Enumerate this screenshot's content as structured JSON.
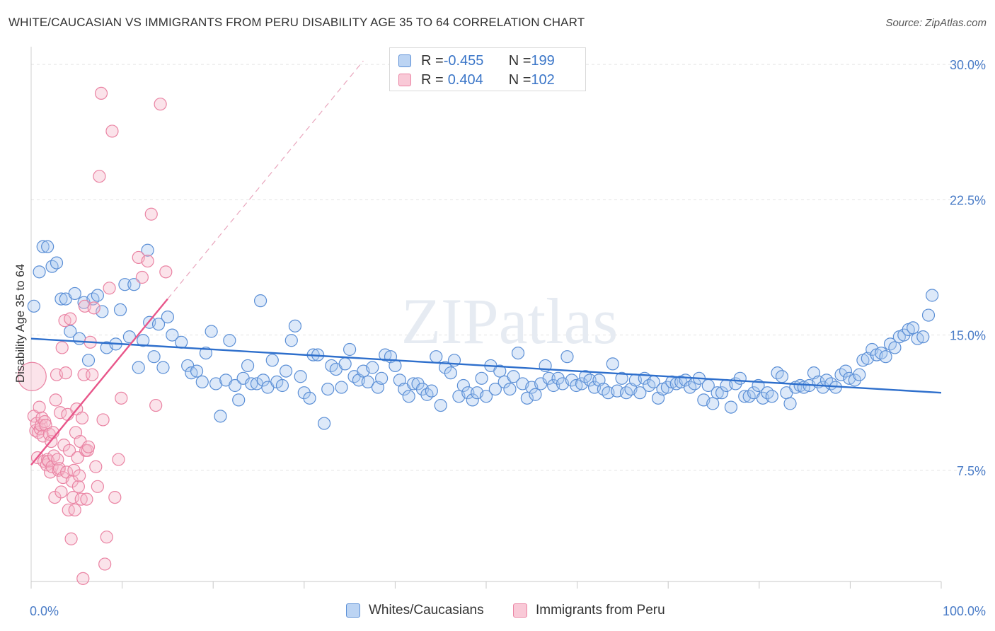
{
  "title": "WHITE/CAUCASIAN VS IMMIGRANTS FROM PERU DISABILITY AGE 35 TO 64 CORRELATION CHART",
  "source": "Source: ZipAtlas.com",
  "watermark": "ZIPatlas",
  "colors": {
    "blue_fill": "#a9c7ef",
    "blue_stroke": "#5b8fd6",
    "blue_line": "#2e6fcc",
    "pink_fill": "#f6b8cb",
    "pink_stroke": "#ea83a3",
    "pink_line": "#e8568a",
    "tick_text": "#4a7cc7",
    "grid": "#e3e3e3"
  },
  "legend_top": {
    "rows": [
      {
        "r_label": "R = ",
        "r_value": "-0.455",
        "n_label": "N = ",
        "n_value": "199",
        "series": "blue"
      },
      {
        "r_label": "R = ",
        "r_value": "0.404",
        "n_label": "N = ",
        "n_value": "102",
        "series": "pink"
      }
    ]
  },
  "legend_bottom": [
    {
      "label": "Whites/Caucasians",
      "series": "blue"
    },
    {
      "label": "Immigrants from Peru",
      "series": "pink"
    }
  ],
  "chart_data": {
    "type": "scatter",
    "ylabel": "Disability Age 35 to 64",
    "xlim": [
      0,
      100
    ],
    "ylim": [
      0,
      31
    ],
    "x_tick_labels": [
      "0.0%",
      "100.0%"
    ],
    "y_ticks": [
      {
        "value": 7.5,
        "label": "7.5%"
      },
      {
        "value": 15.0,
        "label": "15.0%"
      },
      {
        "value": 22.5,
        "label": "22.5%"
      },
      {
        "value": 30.0,
        "label": "30.0%"
      }
    ],
    "grid": true,
    "series": [
      {
        "name": "Whites/Caucasians",
        "color": "blue",
        "trend": {
          "x": [
            0,
            100
          ],
          "y": [
            14.8,
            11.8
          ]
        },
        "points": [
          [
            0.3,
            16.6
          ],
          [
            0.9,
            18.5
          ],
          [
            1.3,
            19.9
          ],
          [
            1.8,
            19.9
          ],
          [
            2.3,
            18.8
          ],
          [
            2.8,
            19.0
          ],
          [
            3.3,
            17.0
          ],
          [
            3.8,
            17.0
          ],
          [
            4.3,
            15.2
          ],
          [
            4.8,
            17.3
          ],
          [
            5.3,
            14.8
          ],
          [
            5.8,
            16.8
          ],
          [
            6.3,
            13.6
          ],
          [
            6.8,
            17.0
          ],
          [
            7.3,
            17.2
          ],
          [
            7.8,
            16.3
          ],
          [
            8.3,
            14.3
          ],
          [
            9.3,
            14.5
          ],
          [
            9.8,
            16.4
          ],
          [
            10.3,
            17.8
          ],
          [
            10.8,
            14.9
          ],
          [
            11.3,
            17.8
          ],
          [
            11.8,
            13.2
          ],
          [
            12.3,
            14.7
          ],
          [
            12.8,
            19.7
          ],
          [
            13.0,
            15.7
          ],
          [
            13.5,
            13.8
          ],
          [
            14.0,
            15.6
          ],
          [
            14.5,
            13.2
          ],
          [
            15.0,
            16.0
          ],
          [
            15.5,
            15.0
          ],
          [
            16.5,
            14.6
          ],
          [
            17.2,
            13.3
          ],
          [
            17.6,
            12.9
          ],
          [
            18.2,
            13.0
          ],
          [
            18.8,
            12.4
          ],
          [
            19.2,
            14.0
          ],
          [
            19.8,
            15.2
          ],
          [
            20.3,
            12.3
          ],
          [
            20.8,
            10.5
          ],
          [
            21.4,
            12.5
          ],
          [
            21.8,
            14.7
          ],
          [
            22.4,
            12.2
          ],
          [
            22.8,
            11.4
          ],
          [
            23.3,
            12.6
          ],
          [
            23.8,
            13.3
          ],
          [
            24.2,
            12.3
          ],
          [
            24.8,
            12.3
          ],
          [
            25.2,
            16.9
          ],
          [
            25.5,
            12.5
          ],
          [
            26.0,
            12.1
          ],
          [
            26.5,
            13.6
          ],
          [
            27.0,
            12.4
          ],
          [
            27.6,
            12.2
          ],
          [
            28.0,
            13.0
          ],
          [
            28.6,
            14.7
          ],
          [
            29.0,
            15.5
          ],
          [
            29.6,
            12.7
          ],
          [
            30.0,
            11.8
          ],
          [
            30.6,
            11.5
          ],
          [
            31.0,
            13.9
          ],
          [
            31.5,
            13.9
          ],
          [
            32.2,
            10.1
          ],
          [
            32.6,
            12.0
          ],
          [
            33.0,
            13.3
          ],
          [
            33.5,
            13.1
          ],
          [
            34.1,
            12.1
          ],
          [
            34.5,
            13.4
          ],
          [
            35.0,
            14.2
          ],
          [
            35.5,
            12.7
          ],
          [
            36.0,
            12.5
          ],
          [
            36.5,
            13.0
          ],
          [
            37.0,
            12.4
          ],
          [
            37.5,
            13.2
          ],
          [
            38.1,
            12.1
          ],
          [
            38.5,
            12.6
          ],
          [
            38.9,
            13.9
          ],
          [
            39.5,
            13.8
          ],
          [
            40.0,
            13.3
          ],
          [
            40.5,
            12.5
          ],
          [
            41.0,
            12.0
          ],
          [
            41.5,
            11.6
          ],
          [
            42.0,
            12.3
          ],
          [
            42.5,
            12.3
          ],
          [
            43.0,
            12.0
          ],
          [
            43.5,
            11.7
          ],
          [
            44.0,
            11.9
          ],
          [
            44.5,
            13.8
          ],
          [
            45.0,
            11.1
          ],
          [
            45.5,
            13.2
          ],
          [
            46.1,
            12.9
          ],
          [
            46.5,
            13.6
          ],
          [
            47.0,
            11.6
          ],
          [
            47.5,
            12.2
          ],
          [
            48.0,
            11.8
          ],
          [
            48.5,
            11.4
          ],
          [
            49.0,
            11.8
          ],
          [
            49.5,
            12.6
          ],
          [
            50.0,
            11.6
          ],
          [
            50.5,
            13.3
          ],
          [
            51.0,
            12.0
          ],
          [
            51.5,
            13.0
          ],
          [
            52.0,
            12.4
          ],
          [
            52.6,
            12.0
          ],
          [
            53.0,
            12.7
          ],
          [
            53.5,
            14.0
          ],
          [
            54.0,
            12.3
          ],
          [
            54.5,
            11.5
          ],
          [
            55.0,
            12.1
          ],
          [
            55.4,
            11.7
          ],
          [
            56.0,
            12.3
          ],
          [
            56.5,
            13.3
          ],
          [
            56.9,
            12.6
          ],
          [
            57.4,
            12.2
          ],
          [
            57.9,
            12.6
          ],
          [
            58.4,
            12.3
          ],
          [
            58.9,
            13.8
          ],
          [
            59.4,
            12.5
          ],
          [
            59.9,
            12.2
          ],
          [
            60.5,
            12.3
          ],
          [
            60.9,
            12.7
          ],
          [
            61.4,
            12.5
          ],
          [
            61.9,
            12.1
          ],
          [
            62.4,
            12.5
          ],
          [
            62.9,
            12.0
          ],
          [
            63.4,
            11.8
          ],
          [
            63.9,
            13.4
          ],
          [
            64.4,
            11.9
          ],
          [
            64.9,
            12.6
          ],
          [
            65.4,
            11.8
          ],
          [
            65.9,
            12.0
          ],
          [
            66.4,
            12.5
          ],
          [
            66.9,
            11.8
          ],
          [
            67.4,
            12.6
          ],
          [
            67.9,
            12.2
          ],
          [
            68.4,
            12.4
          ],
          [
            68.9,
            11.5
          ],
          [
            69.4,
            12.0
          ],
          [
            69.9,
            12.1
          ],
          [
            70.4,
            12.4
          ],
          [
            70.9,
            12.3
          ],
          [
            71.4,
            12.4
          ],
          [
            71.9,
            12.5
          ],
          [
            72.4,
            12.1
          ],
          [
            72.9,
            12.3
          ],
          [
            73.4,
            12.6
          ],
          [
            73.9,
            11.4
          ],
          [
            74.4,
            12.2
          ],
          [
            74.9,
            11.2
          ],
          [
            75.4,
            11.8
          ],
          [
            75.9,
            11.8
          ],
          [
            76.4,
            12.2
          ],
          [
            76.9,
            11.0
          ],
          [
            77.4,
            12.3
          ],
          [
            77.9,
            12.6
          ],
          [
            78.4,
            11.6
          ],
          [
            78.9,
            11.6
          ],
          [
            79.4,
            11.8
          ],
          [
            79.9,
            12.2
          ],
          [
            80.4,
            11.5
          ],
          [
            80.9,
            11.8
          ],
          [
            81.4,
            11.6
          ],
          [
            82.0,
            12.9
          ],
          [
            82.5,
            12.7
          ],
          [
            83.0,
            11.8
          ],
          [
            83.4,
            11.2
          ],
          [
            84.0,
            12.1
          ],
          [
            84.5,
            12.2
          ],
          [
            84.9,
            12.1
          ],
          [
            85.5,
            12.2
          ],
          [
            86.0,
            12.9
          ],
          [
            86.5,
            12.4
          ],
          [
            87.0,
            12.1
          ],
          [
            87.4,
            12.5
          ],
          [
            87.9,
            12.3
          ],
          [
            88.4,
            12.1
          ],
          [
            89.0,
            12.8
          ],
          [
            89.5,
            13.0
          ],
          [
            89.9,
            12.6
          ],
          [
            90.5,
            12.5
          ],
          [
            91.0,
            12.8
          ],
          [
            91.4,
            13.6
          ],
          [
            91.9,
            13.7
          ],
          [
            92.4,
            14.2
          ],
          [
            92.9,
            13.9
          ],
          [
            93.4,
            14.0
          ],
          [
            93.9,
            13.8
          ],
          [
            94.4,
            14.5
          ],
          [
            94.9,
            14.3
          ],
          [
            95.4,
            14.9
          ],
          [
            95.9,
            15.0
          ],
          [
            96.4,
            15.3
          ],
          [
            96.9,
            15.4
          ],
          [
            97.4,
            14.8
          ],
          [
            98.0,
            14.9
          ],
          [
            98.6,
            16.1
          ],
          [
            99.0,
            17.2
          ]
        ]
      },
      {
        "name": "Immigrants from Peru",
        "color": "pink",
        "trend": {
          "x": [
            0,
            15
          ],
          "y": [
            7.8,
            17.0
          ]
        },
        "trend_extension": {
          "x": [
            15,
            36.5
          ],
          "y": [
            17.0,
            30.2
          ]
        },
        "points": [
          [
            0.1,
            12.7
          ],
          [
            0.3,
            10.5
          ],
          [
            0.5,
            9.7
          ],
          [
            0.6,
            10.1
          ],
          [
            0.7,
            8.2
          ],
          [
            0.8,
            9.6
          ],
          [
            0.9,
            11.0
          ],
          [
            1.0,
            9.8
          ],
          [
            1.1,
            10.0
          ],
          [
            1.2,
            10.4
          ],
          [
            1.3,
            9.4
          ],
          [
            1.4,
            8.0
          ],
          [
            1.5,
            10.2
          ],
          [
            1.6,
            10.0
          ],
          [
            1.7,
            7.8
          ],
          [
            1.8,
            8.1
          ],
          [
            1.9,
            8.0
          ],
          [
            2.0,
            9.5
          ],
          [
            2.1,
            7.4
          ],
          [
            2.2,
            9.1
          ],
          [
            2.3,
            7.7
          ],
          [
            2.4,
            9.6
          ],
          [
            2.5,
            8.3
          ],
          [
            2.6,
            6.0
          ],
          [
            2.7,
            11.4
          ],
          [
            2.8,
            12.8
          ],
          [
            2.9,
            8.1
          ],
          [
            3.0,
            7.5
          ],
          [
            3.1,
            7.6
          ],
          [
            3.2,
            10.7
          ],
          [
            3.3,
            6.3
          ],
          [
            3.4,
            14.3
          ],
          [
            3.5,
            7.1
          ],
          [
            3.6,
            8.9
          ],
          [
            3.7,
            15.8
          ],
          [
            3.8,
            12.9
          ],
          [
            3.9,
            7.4
          ],
          [
            4.0,
            10.6
          ],
          [
            4.1,
            5.3
          ],
          [
            4.2,
            8.6
          ],
          [
            4.3,
            15.9
          ],
          [
            4.4,
            3.7
          ],
          [
            4.5,
            6.9
          ],
          [
            4.6,
            6.0
          ],
          [
            4.7,
            7.5
          ],
          [
            4.8,
            5.3
          ],
          [
            4.9,
            9.6
          ],
          [
            5.0,
            10.9
          ],
          [
            5.1,
            8.2
          ],
          [
            5.2,
            6.6
          ],
          [
            5.3,
            7.2
          ],
          [
            5.4,
            9.1
          ],
          [
            5.5,
            5.9
          ],
          [
            5.6,
            10.4
          ],
          [
            5.7,
            1.5
          ],
          [
            5.8,
            12.8
          ],
          [
            5.9,
            16.6
          ],
          [
            6.0,
            8.6
          ],
          [
            6.1,
            5.9
          ],
          [
            6.2,
            8.6
          ],
          [
            6.3,
            8.8
          ],
          [
            6.5,
            14.6
          ],
          [
            6.7,
            12.8
          ],
          [
            6.9,
            16.5
          ],
          [
            7.1,
            7.7
          ],
          [
            7.3,
            6.6
          ],
          [
            7.5,
            23.8
          ],
          [
            7.7,
            28.4
          ],
          [
            7.9,
            10.3
          ],
          [
            8.1,
            2.3
          ],
          [
            8.3,
            3.8
          ],
          [
            8.6,
            17.6
          ],
          [
            8.9,
            26.3
          ],
          [
            9.2,
            6.0
          ],
          [
            9.6,
            8.1
          ],
          [
            9.9,
            11.5
          ],
          [
            11.8,
            19.3
          ],
          [
            12.2,
            18.2
          ],
          [
            12.8,
            19.1
          ],
          [
            13.2,
            21.7
          ],
          [
            13.7,
            11.1
          ],
          [
            14.2,
            27.8
          ],
          [
            14.8,
            18.5
          ]
        ]
      }
    ]
  }
}
